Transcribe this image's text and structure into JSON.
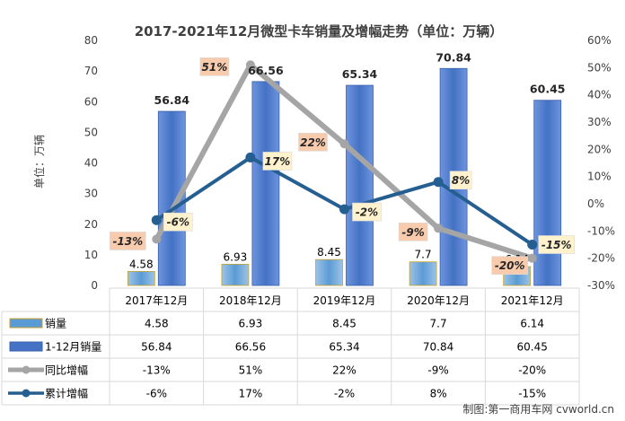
{
  "chart_data": {
    "type": "bar",
    "title": "2017-2021年12月微型卡车销量及增幅走势（单位：万辆）",
    "ylabel": "单位：万辆",
    "ylim": [
      0,
      80
    ],
    "y_ticks": [
      0,
      10,
      20,
      30,
      40,
      50,
      60,
      70,
      80
    ],
    "y2lim": [
      -30,
      60
    ],
    "y2_ticks": [
      "-30%",
      "-20%",
      "-10%",
      "0%",
      "10%",
      "20%",
      "30%",
      "40%",
      "50%",
      "60%"
    ],
    "categories": [
      "2017年12月",
      "2018年12月",
      "2019年12月",
      "2020年12月",
      "2021年12月"
    ],
    "series": [
      {
        "name": "销量",
        "type": "bar",
        "axis": "left",
        "color": "#5B9BD5",
        "values": [
          4.58,
          6.93,
          8.45,
          7.7,
          6.14
        ],
        "labels": [
          "4.58",
          "6.93",
          "8.45",
          "7.7",
          "6.14"
        ]
      },
      {
        "name": "1-12月销量",
        "type": "bar",
        "axis": "left",
        "color": "#4472C4",
        "values": [
          56.84,
          66.56,
          65.34,
          70.84,
          60.45
        ],
        "labels": [
          "56.84",
          "66.56",
          "65.34",
          "70.84",
          "60.45"
        ]
      },
      {
        "name": "同比增幅",
        "type": "line",
        "axis": "right",
        "color": "#A5A5A5",
        "values": [
          -13,
          51,
          22,
          -9,
          -20
        ],
        "labels": [
          "-13%",
          "51%",
          "22%",
          "-9%",
          "-20%"
        ]
      },
      {
        "name": "累计增幅",
        "type": "line",
        "axis": "right",
        "color": "#255E91",
        "values": [
          -6,
          17,
          -2,
          8,
          -15
        ],
        "labels": [
          "-6%",
          "17%",
          "-2%",
          "8%",
          "-15%"
        ]
      }
    ],
    "legend": "data-table-bottom",
    "grid": false
  },
  "footer": {
    "credit": "制图:第一商用车网 cvworld.cn"
  }
}
